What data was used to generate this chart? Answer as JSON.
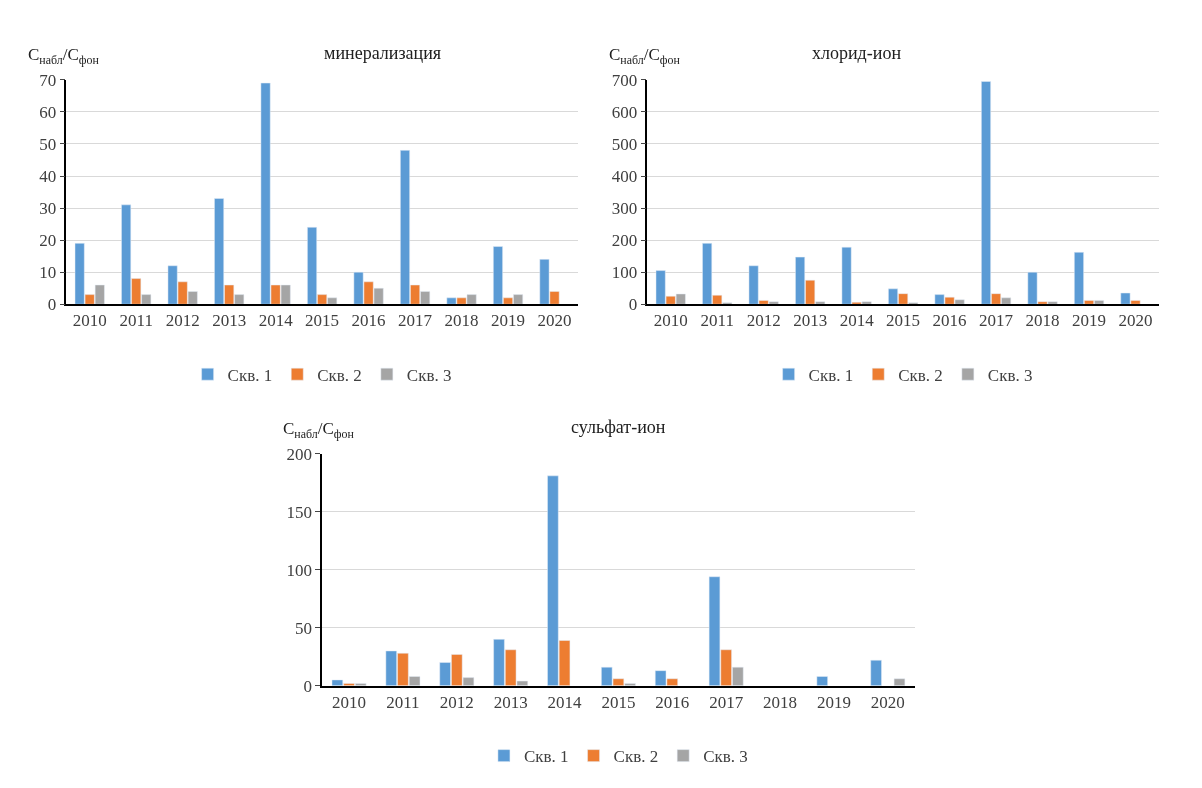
{
  "chart_data": [
    {
      "type": "bar",
      "title": "минерализация",
      "ylabel": "C$_{набл}$/C$_{фон}$",
      "categories": [
        "2010",
        "2011",
        "2012",
        "2013",
        "2014",
        "2015",
        "2016",
        "2017",
        "2018",
        "2019",
        "2020"
      ],
      "ylim": [
        0,
        70
      ],
      "yticks": [
        0,
        10,
        20,
        30,
        40,
        50,
        60,
        70
      ],
      "grid": "y",
      "legend": "bottom",
      "series": [
        {
          "name": "Скв. 1",
          "color": "#5b9bd5",
          "values": [
            19,
            31,
            12,
            33,
            69,
            24,
            10,
            48,
            2,
            18,
            14
          ]
        },
        {
          "name": "Скв. 2",
          "color": "#ed7d31",
          "values": [
            3,
            8,
            7,
            6,
            6,
            3,
            7,
            6,
            2,
            2,
            4
          ]
        },
        {
          "name": "Скв. 3",
          "color": "#a5a5a5",
          "values": [
            6,
            3,
            4,
            3,
            6,
            2,
            5,
            4,
            3,
            3,
            null
          ]
        }
      ]
    },
    {
      "type": "bar",
      "title": "хлорид-ион",
      "ylabel": "C$_{набл}$/C$_{фон}$",
      "categories": [
        "2010",
        "2011",
        "2012",
        "2013",
        "2014",
        "2015",
        "2016",
        "2017",
        "2018",
        "2019",
        "2020"
      ],
      "ylim": [
        0,
        700
      ],
      "yticks": [
        0,
        100,
        200,
        300,
        400,
        500,
        600,
        700
      ],
      "grid": "y",
      "legend": "bottom",
      "series": [
        {
          "name": "Скв. 1",
          "color": "#5b9bd5",
          "values": [
            105,
            190,
            120,
            147,
            178,
            48,
            30,
            695,
            100,
            162,
            35
          ]
        },
        {
          "name": "Скв. 2",
          "color": "#ed7d31",
          "values": [
            25,
            28,
            12,
            75,
            6,
            33,
            22,
            33,
            8,
            12,
            12
          ]
        },
        {
          "name": "Скв. 3",
          "color": "#a5a5a5",
          "values": [
            32,
            5,
            8,
            8,
            8,
            5,
            14,
            20,
            8,
            12,
            null
          ]
        }
      ]
    },
    {
      "type": "bar",
      "title": "сульфат-ион",
      "ylabel": "C$_{набл}$/C$_{фон}$",
      "categories": [
        "2010",
        "2011",
        "2012",
        "2013",
        "2014",
        "2015",
        "2016",
        "2017",
        "2018",
        "2019",
        "2020"
      ],
      "ylim": [
        0,
        200
      ],
      "yticks": [
        0,
        50,
        100,
        150,
        200
      ],
      "grid": "y",
      "legend": "bottom",
      "series": [
        {
          "name": "Скв. 1",
          "color": "#5b9bd5",
          "values": [
            5,
            30,
            20,
            40,
            181,
            16,
            13,
            94,
            null,
            8,
            22
          ]
        },
        {
          "name": "Скв. 2",
          "color": "#ed7d31",
          "values": [
            2,
            28,
            27,
            31,
            39,
            6,
            6,
            31,
            null,
            null,
            null
          ]
        },
        {
          "name": "Скв. 3",
          "color": "#a5a5a5",
          "values": [
            2,
            8,
            7,
            4,
            null,
            2,
            null,
            16,
            null,
            null,
            6
          ]
        }
      ]
    }
  ]
}
